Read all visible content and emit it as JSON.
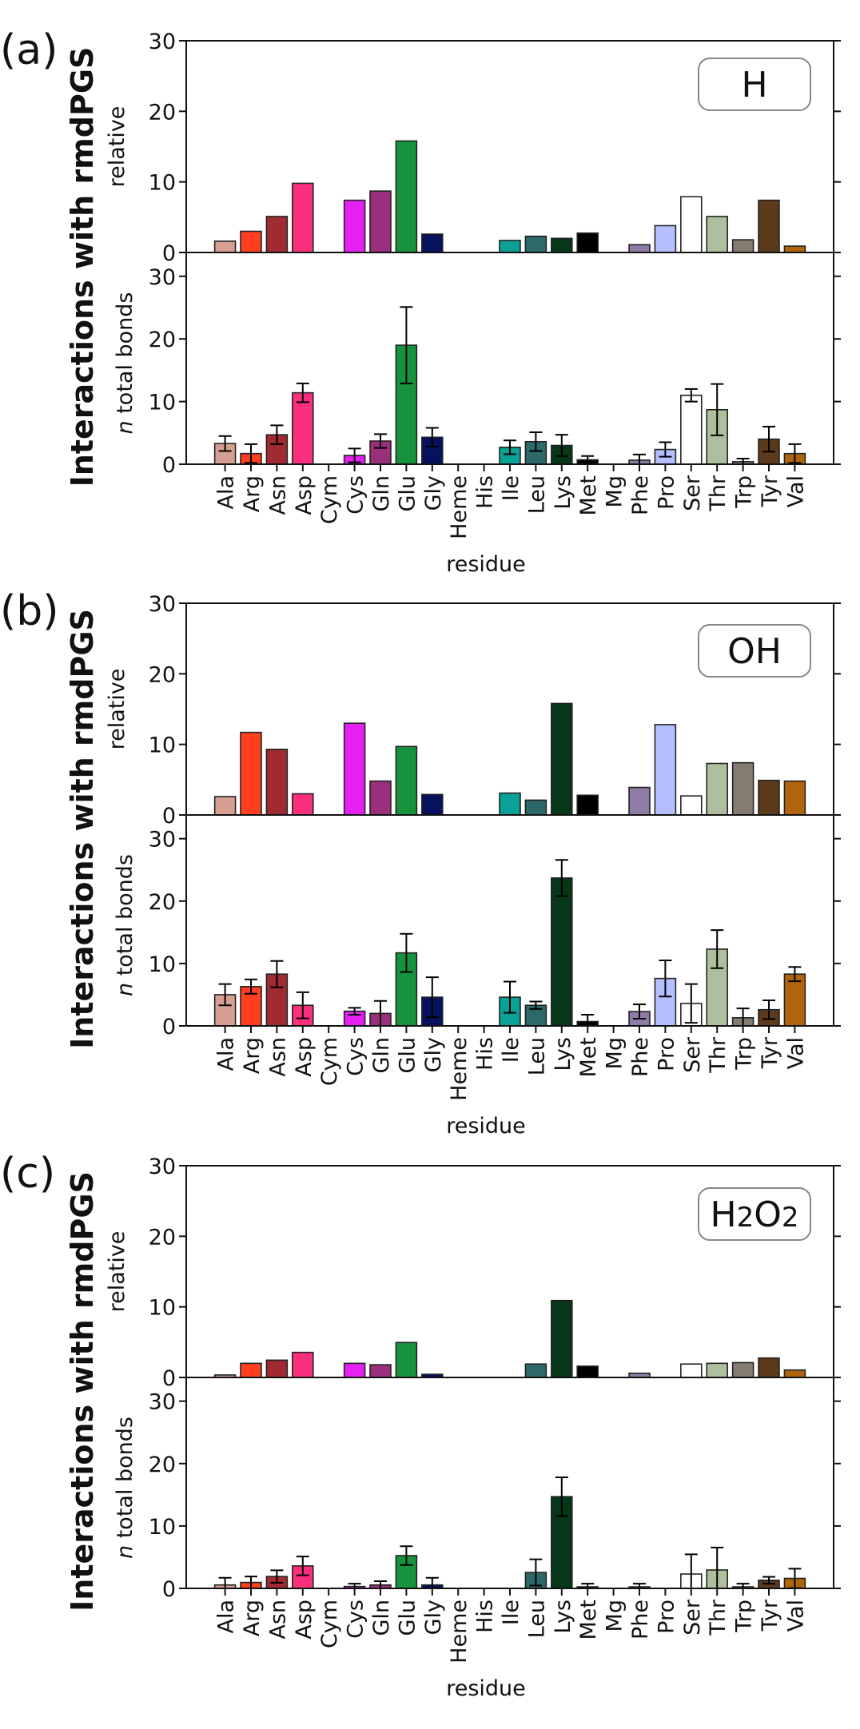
{
  "chart_data": {
    "type": "bar",
    "categories": [
      "Ala",
      "Arg",
      "Asn",
      "Asp",
      "Cym",
      "Cys",
      "Gln",
      "Glu",
      "Gly",
      "Heme",
      "His",
      "Ile",
      "Leu",
      "Lys",
      "Met",
      "Mg",
      "Phe",
      "Pro",
      "Ser",
      "Thr",
      "Trp",
      "Tyr",
      "Val"
    ],
    "colors": {
      "Ala": "#d5a092",
      "Arg": "#ff3f1f",
      "Asn": "#a02b33",
      "Asp": "#fb2f7b",
      "Cym": "#999999",
      "Cys": "#e421f2",
      "Gln": "#9a307c",
      "Glu": "#16933c",
      "Gly": "#06125e",
      "Heme": "#999999",
      "His": "#999999",
      "Ile": "#0aa196",
      "Leu": "#2c6968",
      "Lys": "#063719",
      "Met": "#000000",
      "Mg": "#999999",
      "Phe": "#8e7ca7",
      "Pro": "#b4bfff",
      "Ser": "#ffffff",
      "Thr": "#adbf9c",
      "Trp": "#867d70",
      "Tyr": "#5c3a1b",
      "Val": "#b0650c"
    },
    "main_ylabel": "Interactions with rmdPGS",
    "xlabel": "residue",
    "upper_ylabel": "relative",
    "lower_ylabel_italic": "n",
    "lower_ylabel_rest": " total bonds",
    "upper_ylim": [
      0,
      30
    ],
    "lower_ylim": [
      0,
      33.8
    ],
    "xlim": [
      -1.5,
      23.5
    ],
    "yticks": [
      0,
      10,
      20,
      30
    ],
    "grid": false,
    "legend_placement": "top-right",
    "panels": [
      {
        "label": "(a)",
        "species": "H",
        "species_parts": [
          {
            "t": "H",
            "sub": false
          }
        ],
        "relative": [
          1.6,
          3.0,
          5.1,
          9.8,
          0,
          7.4,
          8.7,
          15.8,
          2.6,
          0,
          0,
          1.7,
          2.3,
          2.0,
          2.75,
          0,
          1.1,
          3.8,
          7.9,
          5.1,
          1.8,
          7.4,
          0.9
        ],
        "total_bonds": [
          3.3,
          1.7,
          4.7,
          11.4,
          0,
          1.4,
          3.7,
          19.0,
          4.3,
          0,
          0,
          2.7,
          3.6,
          3.0,
          0.7,
          0,
          0.65,
          2.35,
          11.0,
          8.7,
          0.4,
          4.0,
          1.7
        ],
        "total_bonds_err": [
          1.2,
          1.5,
          1.5,
          1.5,
          0,
          1.1,
          1.1,
          6.1,
          1.5,
          0,
          0,
          1.1,
          1.5,
          1.7,
          0.6,
          0,
          0.9,
          1.15,
          1.0,
          4.1,
          0.5,
          2.0,
          1.5
        ]
      },
      {
        "label": "(b)",
        "species": "OH",
        "species_parts": [
          {
            "t": "OH",
            "sub": false
          }
        ],
        "relative": [
          2.6,
          11.7,
          9.3,
          3.0,
          0,
          13.0,
          4.8,
          9.7,
          2.9,
          0,
          0,
          3.1,
          2.1,
          15.8,
          2.8,
          0,
          3.9,
          12.8,
          2.7,
          7.3,
          7.4,
          4.9,
          4.8
        ],
        "total_bonds": [
          5.0,
          6.3,
          8.3,
          3.3,
          0,
          2.35,
          2.0,
          11.7,
          4.6,
          0,
          0,
          4.6,
          3.3,
          23.7,
          0.7,
          0,
          2.3,
          7.6,
          3.6,
          12.3,
          1.3,
          2.6,
          8.3
        ],
        "total_bonds_err": [
          1.7,
          1.15,
          2.1,
          2.1,
          0,
          0.55,
          2.0,
          3.05,
          3.2,
          0,
          0,
          2.5,
          0.6,
          2.9,
          1.1,
          0,
          1.15,
          2.9,
          3.1,
          3.05,
          1.5,
          1.5,
          1.15
        ]
      },
      {
        "label": "(c)",
        "species": "H2O2",
        "species_parts": [
          {
            "t": "H",
            "sub": false
          },
          {
            "t": "2",
            "sub": true
          },
          {
            "t": "O",
            "sub": false
          },
          {
            "t": "2",
            "sub": true
          }
        ],
        "relative": [
          0.35,
          2.0,
          2.45,
          3.55,
          0,
          2.0,
          1.8,
          4.95,
          0.45,
          0,
          0,
          0,
          1.9,
          10.9,
          1.6,
          0,
          0.6,
          0,
          1.9,
          2.0,
          2.1,
          2.75,
          1.05
        ],
        "total_bonds": [
          0.55,
          0.95,
          1.9,
          3.6,
          0,
          0.3,
          0.55,
          5.25,
          0.55,
          0,
          0,
          0,
          2.55,
          14.7,
          0.25,
          0,
          0.25,
          0,
          2.3,
          2.95,
          0.25,
          1.3,
          1.6
        ],
        "total_bonds_err": [
          1.15,
          0.95,
          1.0,
          1.5,
          0,
          0.45,
          0.6,
          1.5,
          1.15,
          0,
          0,
          0,
          2.1,
          3.1,
          0.5,
          0,
          0.5,
          0,
          3.15,
          3.6,
          0.5,
          0.55,
          1.55
        ]
      }
    ]
  }
}
